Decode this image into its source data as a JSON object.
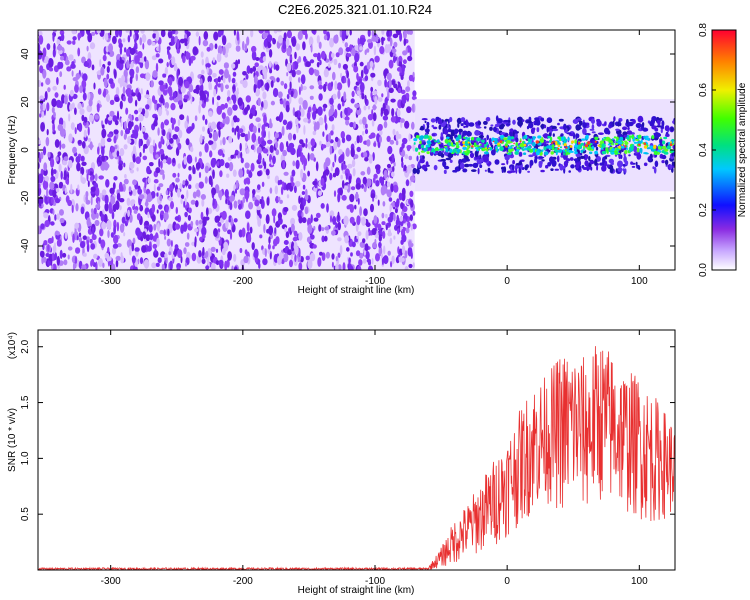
{
  "title": "C2E6.2025.321.01.10.R24",
  "colors": {
    "signal": "#e83030",
    "noise": "#7a2cf0",
    "axis": "#000000"
  },
  "chart_data": [
    {
      "type": "heatmap",
      "name": "spectrogram",
      "xlabel": "Height of straight line (km)",
      "ylabel": "Frequency (Hz)",
      "xlim": [
        -355,
        127
      ],
      "ylim": [
        -50,
        50
      ],
      "x_ticks": [
        -300,
        -200,
        -100,
        0,
        100
      ],
      "y_ticks": [
        -40,
        -20,
        0,
        20,
        40
      ],
      "noise_region": [
        -355,
        -70
      ],
      "signal_region": [
        -70,
        127
      ],
      "signal_band_center_hz": 2,
      "signal_band_halfwidth_hz": 8,
      "colorbar": {
        "label": "Normalized spectral amplitude",
        "range": [
          0.0,
          0.8
        ],
        "ticks": [
          "0.0",
          "0.2",
          "0.4",
          "0.6",
          "0.8"
        ]
      }
    },
    {
      "type": "line",
      "name": "snr",
      "xlabel": "Height of straight line (km)",
      "ylabel": "SNR (10 * v/v)",
      "scale_label": "(x10⁴)",
      "xlim": [
        -355,
        127
      ],
      "ylim": [
        0,
        2.15
      ],
      "x_ticks": [
        -300,
        -200,
        -100,
        0,
        100
      ],
      "y_ticks": [
        "0.5",
        "1.0",
        "1.5",
        "2.0"
      ],
      "envelope": {
        "x": [
          -355,
          -60,
          -50,
          -40,
          -30,
          -20,
          -10,
          0,
          10,
          20,
          30,
          40,
          50,
          60,
          70,
          80,
          90,
          100,
          110,
          127
        ],
        "y_max": [
          0.02,
          0.02,
          0.2,
          0.45,
          0.6,
          0.8,
          1.0,
          1.2,
          1.45,
          1.7,
          1.75,
          1.95,
          2.0,
          1.9,
          2.1,
          1.95,
          1.8,
          1.75,
          1.6,
          1.3
        ],
        "y_min": [
          0.0,
          0.0,
          0.02,
          0.05,
          0.1,
          0.15,
          0.2,
          0.3,
          0.4,
          0.5,
          0.6,
          0.5,
          0.55,
          0.5,
          0.6,
          0.55,
          0.5,
          0.45,
          0.4,
          0.5
        ]
      }
    }
  ]
}
